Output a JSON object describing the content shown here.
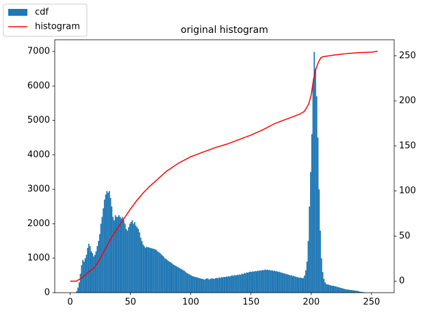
{
  "chart_data": {
    "type": "histogram",
    "title": "original histogram",
    "legend": "upper left",
    "xlim": [
      -12.8,
      268.8
    ],
    "ylim": [
      0,
      7340
    ],
    "y2lim": [
      -12.75,
      267.75
    ],
    "xticks": [
      0,
      50,
      100,
      150,
      200,
      250
    ],
    "yticks": [
      0,
      1000,
      2000,
      3000,
      4000,
      5000,
      6000,
      7000
    ],
    "y2ticks": [
      0,
      50,
      100,
      150,
      200,
      250
    ],
    "series": [
      {
        "name": "cdf",
        "type": "histogram",
        "color": "#1f77b4",
        "bins": [
          0,
          1,
          2,
          3,
          4,
          5,
          6,
          7,
          8,
          9,
          10,
          11,
          12,
          13,
          14,
          15,
          16,
          17,
          18,
          19,
          20,
          21,
          22,
          23,
          24,
          25,
          26,
          27,
          28,
          29,
          30,
          31,
          32,
          33,
          34,
          35,
          36,
          37,
          38,
          39,
          40,
          41,
          42,
          43,
          44,
          45,
          46,
          47,
          48,
          49,
          50,
          51,
          52,
          53,
          54,
          55,
          56,
          57,
          58,
          59,
          60,
          61,
          62,
          63,
          64,
          65,
          66,
          67,
          68,
          69,
          70,
          71,
          72,
          73,
          74,
          75,
          76,
          77,
          78,
          79,
          80,
          81,
          82,
          83,
          84,
          85,
          86,
          87,
          88,
          89,
          90,
          91,
          92,
          93,
          94,
          95,
          96,
          97,
          98,
          99,
          100,
          101,
          102,
          103,
          104,
          105,
          106,
          107,
          108,
          109,
          110,
          111,
          112,
          113,
          114,
          115,
          116,
          117,
          118,
          119,
          120,
          121,
          122,
          123,
          124,
          125,
          126,
          127,
          128,
          129,
          130,
          131,
          132,
          133,
          134,
          135,
          136,
          137,
          138,
          139,
          140,
          141,
          142,
          143,
          144,
          145,
          146,
          147,
          148,
          149,
          150,
          151,
          152,
          153,
          154,
          155,
          156,
          157,
          158,
          159,
          160,
          161,
          162,
          163,
          164,
          165,
          166,
          167,
          168,
          169,
          170,
          171,
          172,
          173,
          174,
          175,
          176,
          177,
          178,
          179,
          180,
          181,
          182,
          183,
          184,
          185,
          186,
          187,
          188,
          189,
          190,
          191,
          192,
          193,
          194,
          195,
          196,
          197,
          198,
          199,
          200,
          201,
          202,
          203,
          204,
          205,
          206,
          207,
          208,
          209,
          210,
          211,
          212,
          213,
          214,
          215,
          216,
          217,
          218,
          219,
          220,
          221,
          222,
          223,
          224,
          225,
          226,
          227,
          228,
          229,
          230,
          231,
          232,
          233,
          234,
          235,
          236,
          237,
          238,
          239,
          240,
          241,
          242,
          243,
          244,
          245,
          246,
          247,
          248,
          249,
          250,
          251,
          252,
          253,
          254,
          255,
          256
        ],
        "values": [
          0,
          0,
          0,
          0,
          0,
          50,
          150,
          300,
          550,
          800,
          950,
          900,
          1000,
          1100,
          1300,
          1420,
          1350,
          1200,
          1150,
          1050,
          1100,
          1200,
          1350,
          1500,
          1700,
          2000,
          2200,
          2450,
          2700,
          2850,
          2950,
          2900,
          2950,
          2750,
          2500,
          2200,
          2100,
          2250,
          2200,
          2200,
          2250,
          2200,
          2150,
          2200,
          2100,
          2000,
          1850,
          1800,
          1900,
          2000,
          2050,
          2100,
          2000,
          2050,
          1950,
          1900,
          1850,
          1750,
          1600,
          1500,
          1400,
          1350,
          1300,
          1330,
          1320,
          1310,
          1300,
          1290,
          1280,
          1270,
          1260,
          1240,
          1200,
          1180,
          1150,
          1120,
          1080,
          1050,
          1000,
          980,
          950,
          920,
          900,
          880,
          850,
          820,
          800,
          780,
          760,
          740,
          720,
          700,
          680,
          660,
          640,
          610,
          580,
          560,
          540,
          520,
          500,
          480,
          470,
          460,
          450,
          440,
          430,
          420,
          410,
          400,
          390,
          380,
          400,
          420,
          400,
          380,
          400,
          420,
          410,
          400,
          420,
          430,
          420,
          440,
          430,
          450,
          440,
          460,
          450,
          470,
          460,
          480,
          470,
          490,
          500,
          490,
          510,
          500,
          520,
          510,
          530,
          520,
          550,
          540,
          570,
          560,
          590,
          580,
          600,
          610,
          600,
          620,
          610,
          630,
          620,
          640,
          630,
          650,
          640,
          660,
          650,
          670,
          660,
          670,
          650,
          660,
          640,
          650,
          630,
          640,
          620,
          630,
          600,
          610,
          590,
          580,
          570,
          560,
          550,
          540,
          530,
          520,
          500,
          510,
          480,
          490,
          470,
          460,
          450,
          440,
          430,
          440,
          420,
          430,
          500,
          650,
          900,
          1500,
          2500,
          3500,
          4600,
          6100,
          6990,
          6500,
          5700,
          4500,
          3000,
          1800,
          1000,
          600,
          400,
          300,
          250,
          240,
          230,
          220,
          210,
          200,
          200,
          190,
          180,
          170,
          160,
          150,
          140,
          130,
          120,
          110,
          100,
          95,
          90,
          85,
          80,
          75,
          70,
          65,
          60,
          55,
          50,
          40,
          30,
          25,
          20,
          15,
          10,
          5,
          0,
          0,
          0,
          0,
          0,
          0,
          0,
          0,
          0,
          0
        ]
      },
      {
        "name": "histogram",
        "type": "line",
        "axis": "y2",
        "color": "#ff0000",
        "x": [
          0,
          5,
          10,
          15,
          20,
          25,
          30,
          35,
          40,
          45,
          50,
          55,
          60,
          65,
          70,
          80,
          90,
          100,
          110,
          120,
          130,
          140,
          150,
          160,
          170,
          180,
          190,
          194,
          196,
          198,
          200,
          202,
          204,
          206,
          208,
          210,
          215,
          220,
          230,
          240,
          250,
          255
        ],
        "values": [
          0,
          0,
          4,
          10,
          15,
          25,
          38,
          50,
          60,
          70,
          80,
          89,
          97,
          104,
          110,
          122,
          131,
          138,
          143,
          148,
          152,
          157,
          162,
          168,
          175,
          180,
          185,
          188,
          192,
          197,
          207,
          225,
          236,
          243,
          248,
          249,
          250,
          251,
          252.5,
          253.5,
          254,
          255
        ]
      }
    ]
  }
}
